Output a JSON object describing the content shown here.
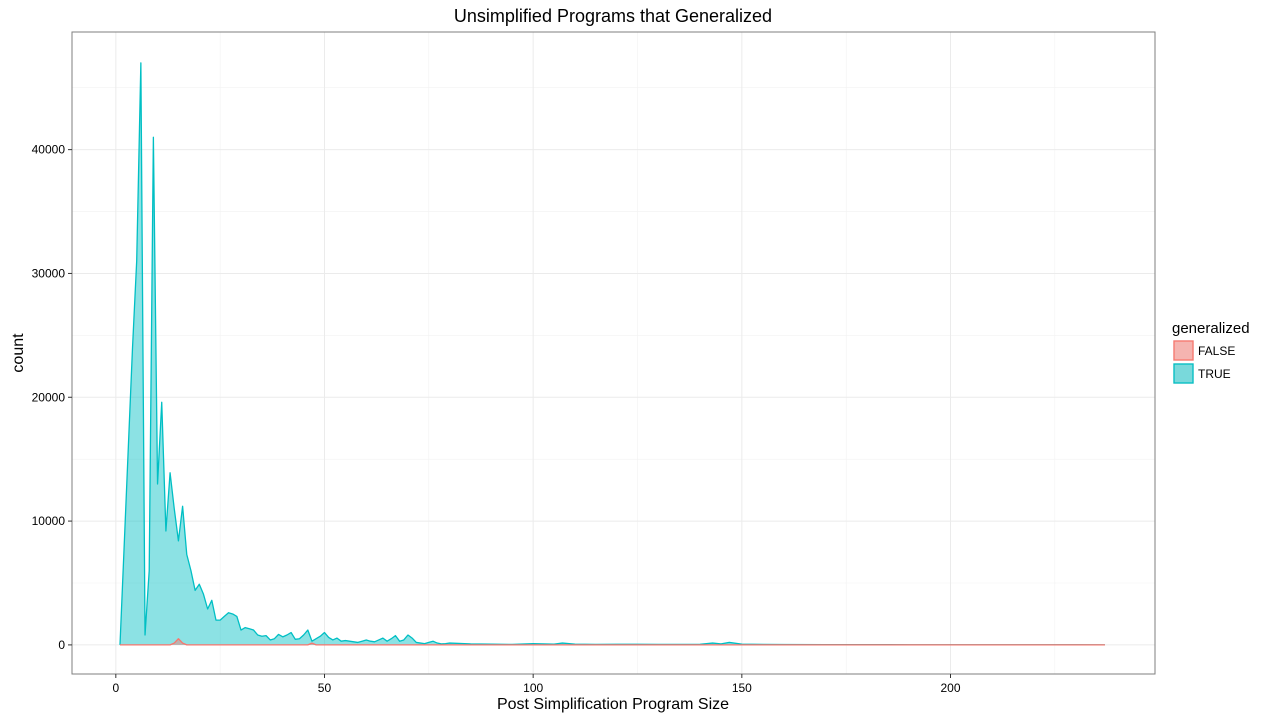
{
  "chart_data": {
    "type": "area",
    "title": "Unsimplified Programs that Generalized",
    "xlabel": "Post Simplification Program Size",
    "ylabel": "count",
    "xlim": [
      -10.5,
      249
    ],
    "ylim": [
      -2350,
      49500
    ],
    "x_ticks": [
      0,
      50,
      100,
      150,
      200
    ],
    "y_ticks": [
      0,
      10000,
      20000,
      30000,
      40000
    ],
    "x_tick_labels": [
      "0",
      "50",
      "100",
      "150",
      "200"
    ],
    "y_tick_labels": [
      "0",
      "10000",
      "20000",
      "30000",
      "40000"
    ],
    "grid": true,
    "legend": {
      "title": "generalized",
      "position": "right",
      "entries": [
        {
          "label": "FALSE",
          "fill": "#F8766D",
          "stroke": "#F8766D"
        },
        {
          "label": "TRUE",
          "fill": "#00BFC4",
          "stroke": "#00BFC4"
        }
      ]
    },
    "series": [
      {
        "name": "TRUE",
        "color": "#00BFC4",
        "x": [
          1,
          2,
          3,
          4,
          5,
          6,
          7,
          8,
          9,
          10,
          11,
          12,
          13,
          14,
          15,
          16,
          17,
          18,
          19,
          20,
          21,
          22,
          23,
          24,
          25,
          26,
          27,
          28,
          29,
          30,
          31,
          32,
          33,
          34,
          35,
          36,
          37,
          38,
          39,
          40,
          41,
          42,
          43,
          44,
          45,
          46,
          47,
          48,
          49,
          50,
          51,
          52,
          53,
          54,
          55,
          56,
          57,
          58,
          59,
          60,
          61,
          62,
          63,
          64,
          65,
          66,
          67,
          68,
          69,
          70,
          71,
          72,
          73,
          74,
          75,
          76,
          77,
          78,
          79,
          80,
          85,
          90,
          95,
          100,
          105,
          107,
          110,
          115,
          120,
          125,
          130,
          135,
          140,
          143,
          145,
          147,
          150,
          160,
          170,
          180,
          190,
          200,
          210,
          220,
          230,
          237
        ],
        "y": [
          0,
          8000,
          16000,
          24000,
          31000,
          47000,
          800,
          6000,
          41000,
          13000,
          19600,
          9200,
          13900,
          11000,
          8400,
          11200,
          7300,
          6000,
          4400,
          4900,
          4100,
          2900,
          3600,
          2000,
          2000,
          2300,
          2600,
          2500,
          2300,
          1200,
          1400,
          1300,
          1200,
          800,
          700,
          750,
          400,
          500,
          850,
          650,
          800,
          1000,
          450,
          500,
          800,
          1200,
          300,
          500,
          700,
          1000,
          600,
          400,
          550,
          300,
          350,
          300,
          250,
          200,
          300,
          400,
          300,
          250,
          400,
          550,
          300,
          500,
          750,
          300,
          400,
          800,
          550,
          200,
          150,
          100,
          200,
          300,
          150,
          80,
          100,
          150,
          80,
          60,
          40,
          100,
          60,
          150,
          60,
          40,
          50,
          50,
          40,
          40,
          50,
          150,
          80,
          200,
          60,
          30,
          20,
          20,
          15,
          10,
          10,
          10,
          10,
          0
        ]
      },
      {
        "name": "FALSE",
        "color": "#F8766D",
        "x": [
          1,
          10,
          13,
          14,
          15,
          16,
          17,
          20,
          30,
          40,
          46,
          47,
          48,
          50,
          60,
          100,
          150,
          237
        ],
        "y": [
          0,
          0,
          0,
          150,
          500,
          150,
          0,
          0,
          0,
          0,
          0,
          150,
          0,
          0,
          0,
          0,
          0,
          0
        ]
      }
    ]
  }
}
